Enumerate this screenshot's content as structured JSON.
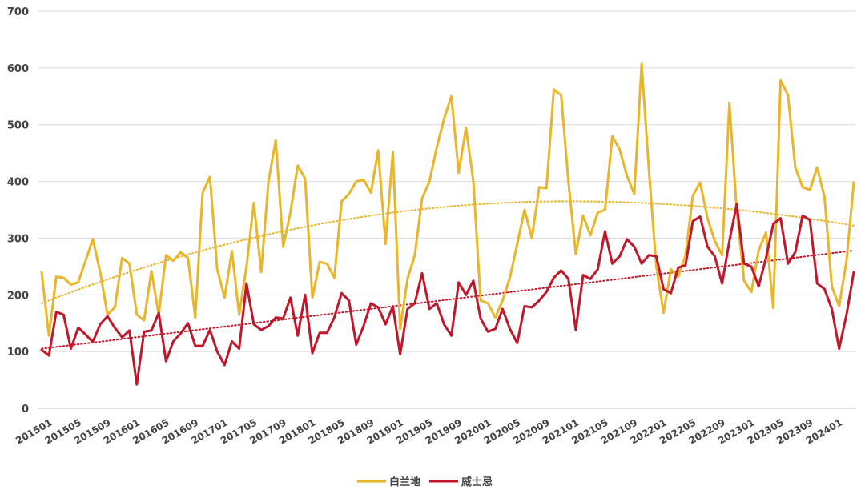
{
  "chart_data": {
    "type": "line",
    "title": "",
    "xlabel": "",
    "ylabel": "",
    "ylim": [
      0,
      700
    ],
    "yticks": [
      0,
      100,
      200,
      300,
      400,
      500,
      600,
      700
    ],
    "grid": true,
    "legend_position": "bottom-center",
    "x_tick_labels": [
      "201501",
      "201505",
      "201509",
      "201601",
      "201605",
      "201609",
      "201701",
      "201705",
      "201709",
      "201801",
      "201805",
      "201809",
      "201901",
      "201905",
      "201909",
      "202001",
      "202005",
      "202009",
      "202101",
      "202105",
      "202109",
      "202201",
      "202205",
      "202209",
      "202301",
      "202305",
      "202309",
      "202401"
    ],
    "x_tick_indices": [
      0,
      4,
      8,
      12,
      16,
      20,
      24,
      28,
      32,
      36,
      40,
      44,
      48,
      52,
      56,
      60,
      64,
      68,
      72,
      76,
      80,
      84,
      88,
      92,
      96,
      100,
      104,
      108
    ],
    "series": [
      {
        "name": "白兰地",
        "color": "#E8B52B",
        "values": [
          240,
          128,
          232,
          230,
          218,
          222,
          260,
          298,
          240,
          165,
          178,
          265,
          255,
          165,
          155,
          242,
          165,
          270,
          260,
          275,
          265,
          160,
          380,
          408,
          245,
          195,
          277,
          165,
          250,
          362,
          240,
          400,
          473,
          285,
          345,
          428,
          405,
          195,
          258,
          255,
          230,
          365,
          378,
          400,
          403,
          380,
          455,
          290,
          452,
          140,
          228,
          270,
          370,
          400,
          460,
          510,
          550,
          415,
          495,
          400,
          190,
          185,
          160,
          190,
          230,
          290,
          350,
          300,
          390,
          388,
          562,
          552,
          400,
          272,
          340,
          305,
          345,
          350,
          480,
          456,
          410,
          378,
          607,
          420,
          250,
          168,
          245,
          232,
          270,
          375,
          398,
          335,
          295,
          270,
          538,
          350,
          225,
          205,
          278,
          310,
          177,
          578,
          552,
          425,
          390,
          385,
          425,
          372,
          215,
          180,
          260,
          398
        ]
      },
      {
        "name": "威士忌",
        "color": "#C0172A",
        "values": [
          103,
          93,
          170,
          165,
          105,
          142,
          130,
          117,
          148,
          162,
          142,
          125,
          137,
          42,
          135,
          137,
          168,
          83,
          118,
          132,
          150,
          110,
          110,
          138,
          100,
          76,
          118,
          105,
          220,
          148,
          138,
          145,
          160,
          158,
          195,
          128,
          200,
          97,
          133,
          133,
          160,
          203,
          190,
          112,
          145,
          185,
          178,
          148,
          180,
          95,
          175,
          185,
          238,
          175,
          185,
          148,
          128,
          222,
          200,
          225,
          158,
          135,
          140,
          175,
          140,
          115,
          180,
          178,
          190,
          205,
          230,
          243,
          228,
          138,
          235,
          228,
          245,
          312,
          255,
          268,
          298,
          285,
          255,
          270,
          268,
          210,
          203,
          248,
          252,
          330,
          338,
          285,
          268,
          220,
          295,
          360,
          255,
          250,
          215,
          265,
          325,
          335,
          255,
          275,
          340,
          332,
          220,
          210,
          175,
          105,
          165,
          240
        ]
      }
    ],
    "trendlines": [
      {
        "series": "白兰地",
        "type": "polynomial",
        "color": "#E8B52B",
        "start": 185,
        "peak": 365,
        "peak_index": 72,
        "end": 322
      },
      {
        "series": "威士忌",
        "type": "linear",
        "color": "#C0172A",
        "start": 105,
        "end": 278
      }
    ]
  }
}
